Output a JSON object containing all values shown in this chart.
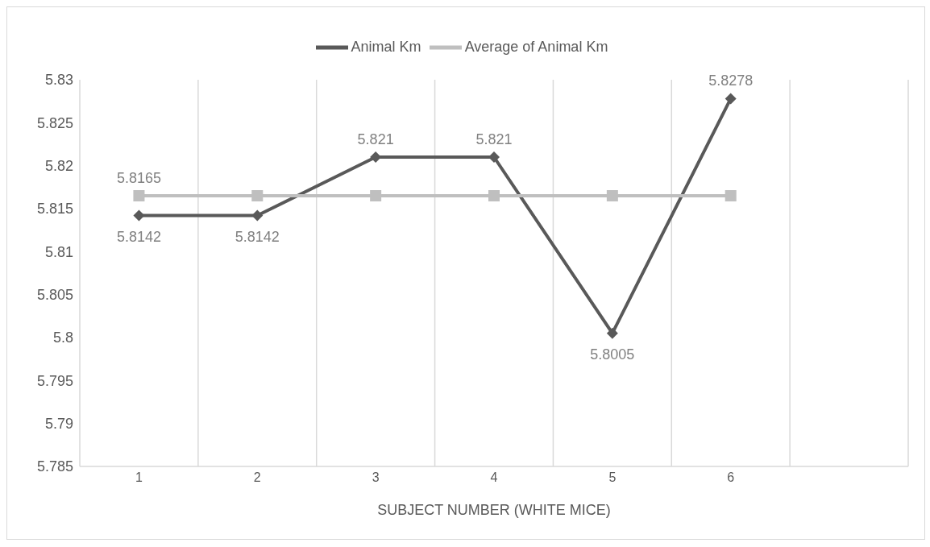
{
  "chart_data": {
    "type": "line",
    "xlabel": "SUBJECT NUMBER (WHITE MICE)",
    "categories": [
      "1",
      "2",
      "3",
      "4",
      "5",
      "6",
      null
    ],
    "series": [
      {
        "name": "Animal Km",
        "color": "#595959",
        "marker": "diamond",
        "values": [
          5.8142,
          5.8142,
          5.821,
          5.821,
          5.8005,
          5.8278,
          null
        ],
        "value_labels": [
          "5.8142",
          "5.8142",
          "5.821",
          "5.821",
          "5.8005",
          "5.8278",
          null
        ]
      },
      {
        "name": "Average of Animal Km",
        "color": "#bfbfbf",
        "marker": "square",
        "values": [
          5.8165,
          5.8165,
          5.8165,
          5.8165,
          5.8165,
          5.8165,
          null
        ],
        "value_labels": [
          "5.8165",
          null,
          null,
          null,
          null,
          null,
          null
        ]
      }
    ],
    "ylim": [
      5.785,
      5.83
    ],
    "yticks": [
      5.785,
      5.79,
      5.795,
      5.8,
      5.805,
      5.81,
      5.815,
      5.82,
      5.825,
      5.83
    ],
    "grid": "x",
    "legend": "top"
  }
}
